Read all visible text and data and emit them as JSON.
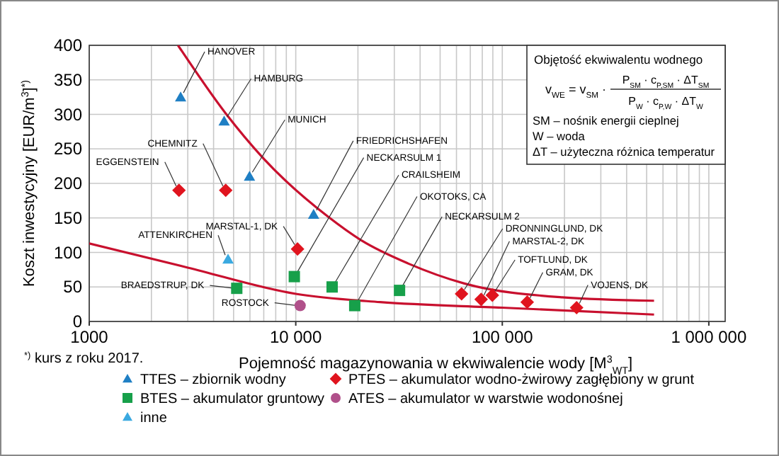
{
  "chart_data": {
    "type": "scatter",
    "xlabel": "Pojemność magazynowania w ekwiwalencie wody [M$^{3}$$_{WT}$]",
    "ylabel": "Koszt inwestycyjny [EUR/m$^{3}$]$^{*)}$",
    "log": "x",
    "xlim": [
      1000,
      1200000
    ],
    "xticks": [
      {
        "value": 1000,
        "label": "1000"
      },
      {
        "value": 10000,
        "label": "10 000"
      },
      {
        "value": 100000,
        "label": "100 000"
      },
      {
        "value": 1000000,
        "label": "1 000 000"
      }
    ],
    "ylim": [
      0,
      400
    ],
    "yticks": [
      0,
      50,
      100,
      150,
      200,
      250,
      300,
      350,
      400
    ],
    "grid": true,
    "legend": "bottom",
    "series": [
      {
        "name": "TTES – zbiornik wodny",
        "color": "#1f7fc4",
        "marker": "triangle",
        "x": [
          2770,
          4500,
          5970,
          12200
        ],
        "values": [
          325,
          290,
          210,
          155
        ]
      },
      {
        "name": "PTES – akumulator wodno-żwirowy zagłębiony w grunt",
        "color": "#e0141e",
        "marker": "diamond",
        "x": [
          2720,
          4580,
          10200,
          63500,
          79000,
          89500,
          132000,
          229000
        ],
        "values": [
          190,
          190,
          105,
          40,
          32,
          38,
          28,
          20
        ]
      },
      {
        "name": "BTES – akumulator gruntowy",
        "color": "#17a04a",
        "marker": "square",
        "x": [
          5180,
          9840,
          15000,
          19300,
          31800
        ],
        "values": [
          48,
          65,
          50,
          23,
          45
        ]
      },
      {
        "name": "ATES – akumulator w warstwie wodonośnej",
        "color": "#b0508a",
        "marker": "circle",
        "x": [
          10500
        ],
        "values": [
          23
        ]
      },
      {
        "name": "inne",
        "color": "#3aa9e0",
        "marker": "triangle",
        "x": [
          4700
        ],
        "values": [
          90
        ]
      },
      {
        "type": "line",
        "color": "#c8102e",
        "x": [
          2690,
          4560,
          6980,
          14300,
          20900,
          35000,
          65500,
          195000,
          543000
        ],
        "values": [
          400,
          302,
          236,
          152,
          117,
          84,
          55,
          35,
          30
        ]
      },
      {
        "type": "line",
        "color": "#c8102e",
        "x": [
          1000,
          3000,
          10000,
          25600,
          100000,
          543000
        ],
        "values": [
          113,
          78,
          40,
          28,
          20,
          10
        ]
      }
    ],
    "annotations": [
      {
        "text": "HANOVER",
        "x": 2770,
        "y": 325
      },
      {
        "text": "HAMBURG",
        "x": 4500,
        "y": 290
      },
      {
        "text": "MUNICH",
        "x": 5970,
        "y": 210
      },
      {
        "text": "FRIEDRICHSHAFEN",
        "x": 12200,
        "y": 155
      },
      {
        "text": "NECKARSULM 1",
        "x": 9840,
        "y": 65
      },
      {
        "text": "CRAILSHEIM",
        "x": 15000,
        "y": 50
      },
      {
        "text": "OKOTOKS, CA",
        "x": 19300,
        "y": 23
      },
      {
        "text": "NECKARSULM 2",
        "x": 31800,
        "y": 45
      },
      {
        "text": "DRONNINGLUND, DK",
        "x": 63500,
        "y": 40
      },
      {
        "text": "MARSTAL-2, DK",
        "x": 79000,
        "y": 32
      },
      {
        "text": "TOFTLUND, DK",
        "x": 89500,
        "y": 38
      },
      {
        "text": "GRAM, DK",
        "x": 132000,
        "y": 28
      },
      {
        "text": "VOJENS, DK",
        "x": 229000,
        "y": 20
      },
      {
        "text": "EGGENSTEIN",
        "x": 2720,
        "y": 190
      },
      {
        "text": "CHEMNITZ",
        "x": 4580,
        "y": 190
      },
      {
        "text": "MARSTAL-1, DK",
        "x": 10200,
        "y": 105
      },
      {
        "text": "ATTENKIRCHEN",
        "x": 4700,
        "y": 90
      },
      {
        "text": "BRAEDSTRUP, DK",
        "x": 5180,
        "y": 48
      },
      {
        "text": "ROSTOCK",
        "x": 10500,
        "y": 23
      },
      "Objętość ekwiwalentu wodnego",
      "v$_{WE}$ = v$_{SM}$ ·",
      "P$_{SM}$ · c$_{P,SM}$ · ΔT$_{SM}$",
      "P$_{W}$ · c$_{P,W}$ · ΔT$_{W}$",
      "SM – nośnik energii cieplnej",
      "W  – woda",
      "ΔT – użyteczna różnica temperatur",
      "$^{*)}$ kurs z roku 2017."
    ]
  }
}
